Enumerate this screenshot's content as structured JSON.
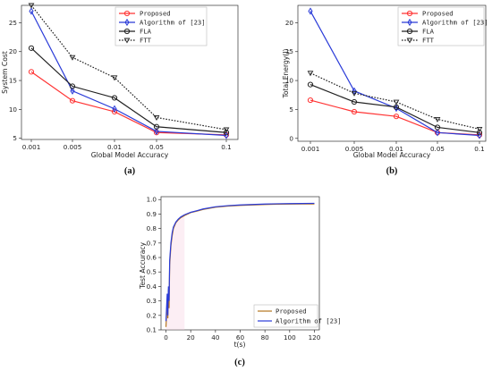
{
  "chart_data": [
    {
      "type": "line",
      "panel": "(a)",
      "categories": [
        "0.001",
        "0.005",
        "0.01",
        "0.05",
        "0.1"
      ],
      "xlabel": "Global Model Accuracy",
      "ylabel": "System Cost",
      "ylim": [
        4.8,
        28
      ],
      "yticks": [
        "5",
        "10",
        "15",
        "20",
        "25"
      ],
      "legend_position": "top-right",
      "series": [
        {
          "name": "Proposed",
          "values": [
            16.5,
            11.5,
            9.6,
            6.0,
            5.6
          ],
          "color": "#ff3333",
          "marker": "circle",
          "dash": "solid"
        },
        {
          "name": "Algorithm of [23]",
          "values": [
            27.0,
            13.2,
            10.1,
            6.2,
            5.5
          ],
          "color": "#2a3bd8",
          "marker": "diamond",
          "dash": "solid"
        },
        {
          "name": "FLA",
          "values": [
            20.6,
            14.0,
            12.0,
            7.0,
            6.0
          ],
          "color": "#222222",
          "marker": "circle",
          "dash": "solid"
        },
        {
          "name": "FTT",
          "values": [
            28.0,
            19.0,
            15.5,
            8.6,
            6.5
          ],
          "color": "#222222",
          "marker": "triangle-down",
          "dash": "dotted"
        }
      ]
    },
    {
      "type": "line",
      "panel": "(b)",
      "categories": [
        "0.001",
        "0.005",
        "0.01",
        "0.05",
        "0.1"
      ],
      "xlabel": "Global Model Accuracy",
      "ylabel": "Total Energy(J)",
      "ylim": [
        -0.5,
        23
      ],
      "yticks": [
        "0",
        "5",
        "10",
        "15",
        "20"
      ],
      "legend_position": "top-right",
      "series": [
        {
          "name": "Proposed",
          "values": [
            6.6,
            4.6,
            3.8,
            1.0,
            0.6
          ],
          "color": "#ff3333",
          "marker": "circle",
          "dash": "solid"
        },
        {
          "name": "Algorithm of [23]",
          "values": [
            22.0,
            8.2,
            5.2,
            1.0,
            0.5
          ],
          "color": "#2a3bd8",
          "marker": "diamond",
          "dash": "solid"
        },
        {
          "name": "FLA",
          "values": [
            9.3,
            6.3,
            5.4,
            1.9,
            1.0
          ],
          "color": "#222222",
          "marker": "circle",
          "dash": "solid"
        },
        {
          "name": "FTT",
          "values": [
            11.3,
            7.8,
            6.3,
            3.3,
            1.6
          ],
          "color": "#222222",
          "marker": "triangle-down",
          "dash": "dotted"
        }
      ]
    },
    {
      "type": "line",
      "panel": "(c)",
      "xlabel": "t(s)",
      "ylabel": "Test Accuracy",
      "xlim": [
        -4,
        124
      ],
      "ylim": [
        0.1,
        1.02
      ],
      "xticks": [
        "0",
        "20",
        "40",
        "60",
        "80",
        "100",
        "120"
      ],
      "yticks": [
        "0.1",
        "0.2",
        "0.3",
        "0.4",
        "0.5",
        "0.6",
        "0.7",
        "0.8",
        "0.9",
        "1.0"
      ],
      "legend_position": "bottom-right",
      "series": [
        {
          "name": "Proposed",
          "color": "#b5741f",
          "x": [
            0,
            1,
            1.5,
            2,
            2.5,
            3,
            4,
            5,
            6,
            8,
            10,
            12,
            15,
            20,
            25,
            30,
            40,
            50,
            60,
            70,
            80,
            90,
            100,
            110,
            120
          ],
          "y": [
            0.12,
            0.3,
            0.18,
            0.38,
            0.25,
            0.55,
            0.68,
            0.75,
            0.8,
            0.84,
            0.86,
            0.875,
            0.89,
            0.91,
            0.92,
            0.932,
            0.947,
            0.955,
            0.96,
            0.963,
            0.966,
            0.968,
            0.969,
            0.97,
            0.97
          ]
        },
        {
          "name": "Algorithm of [23]",
          "color": "#2a3bd8",
          "x": [
            0,
            1,
            1.5,
            2,
            2.5,
            3,
            4,
            5,
            6,
            8,
            10,
            12,
            15,
            20,
            25,
            30,
            40,
            50,
            60,
            70,
            80,
            90,
            100,
            110,
            120
          ],
          "y": [
            0.16,
            0.35,
            0.2,
            0.4,
            0.3,
            0.58,
            0.7,
            0.77,
            0.81,
            0.845,
            0.865,
            0.88,
            0.895,
            0.912,
            0.923,
            0.935,
            0.95,
            0.958,
            0.963,
            0.966,
            0.969,
            0.971,
            0.972,
            0.973,
            0.974
          ]
        }
      ]
    }
  ],
  "captions": [
    "(a)",
    "(b)",
    "(c)"
  ]
}
